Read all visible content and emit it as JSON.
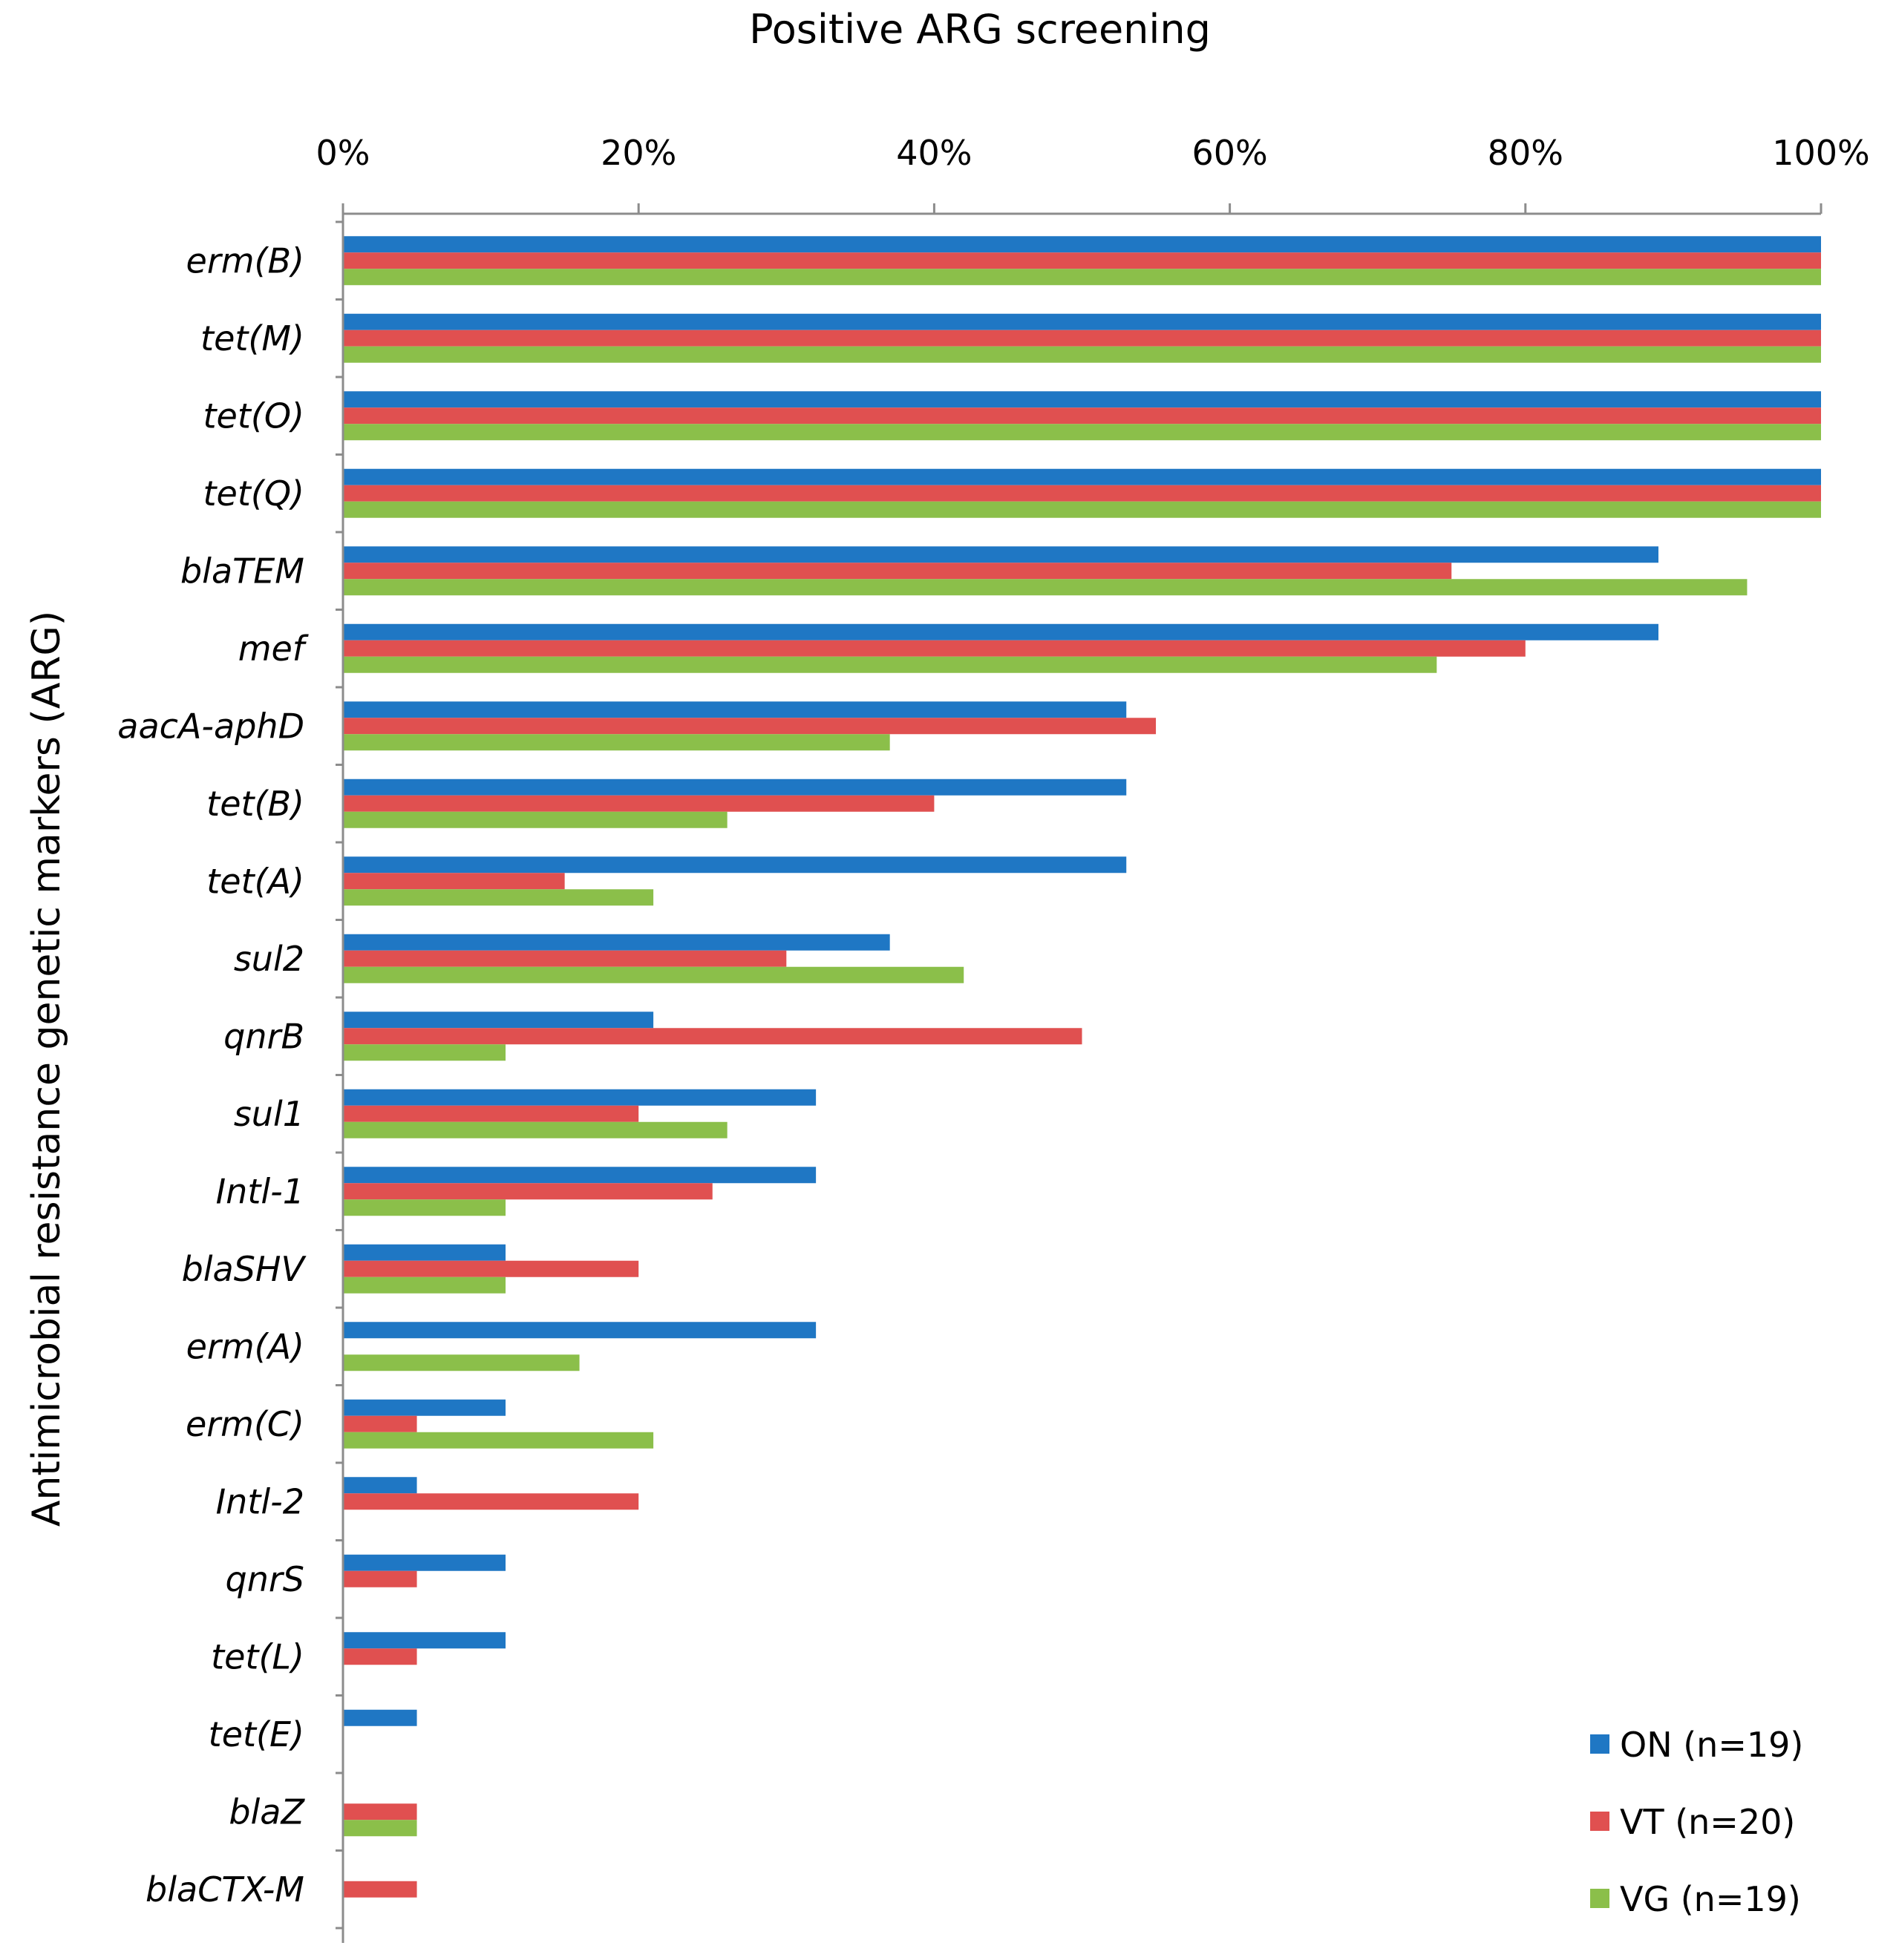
{
  "chart_data": {
    "type": "bar",
    "orientation": "horizontal",
    "title": "Positive ARG screening",
    "xlabel": "",
    "ylabel": "Antimicrobial resistance genetic markers (ARG)",
    "xlim": [
      0,
      100
    ],
    "x_ticks": [
      "0%",
      "20%",
      "40%",
      "60%",
      "80%",
      "100%"
    ],
    "x_tick_values": [
      0,
      20,
      40,
      60,
      80,
      100
    ],
    "x_axis_position": "top",
    "grid": false,
    "legend_position": "bottom-right",
    "categories": [
      "erm(B)",
      "tet(M)",
      "tet(O)",
      "tet(Q)",
      "blaTEM",
      "mef",
      "aacA-aphD",
      "tet(B)",
      "tet(A)",
      "sul2",
      "qnrB",
      "sul1",
      "Intl-1",
      "blaSHV",
      "erm(A)",
      "erm(C)",
      "Intl-2",
      "qnrS",
      "tet(L)",
      "tet(E)",
      "blaZ",
      "blaCTX-M"
    ],
    "series": [
      {
        "name": "ON (n=19)",
        "color": "#1f77c4",
        "values": [
          100,
          100,
          100,
          100,
          89,
          89,
          53,
          53,
          53,
          37,
          21,
          32,
          32,
          11,
          32,
          11,
          5,
          11,
          11,
          5,
          0,
          0
        ]
      },
      {
        "name": "VT (n=20)",
        "color": "#e05050",
        "values": [
          100,
          100,
          100,
          100,
          75,
          80,
          55,
          40,
          15,
          30,
          50,
          20,
          25,
          20,
          0,
          5,
          20,
          5,
          5,
          0,
          5,
          5
        ]
      },
      {
        "name": "VG (n=19)",
        "color": "#8bbf4a",
        "values": [
          100,
          100,
          100,
          100,
          95,
          74,
          37,
          26,
          21,
          42,
          11,
          26,
          11,
          11,
          16,
          21,
          0,
          0,
          0,
          0,
          5,
          0
        ]
      }
    ]
  }
}
